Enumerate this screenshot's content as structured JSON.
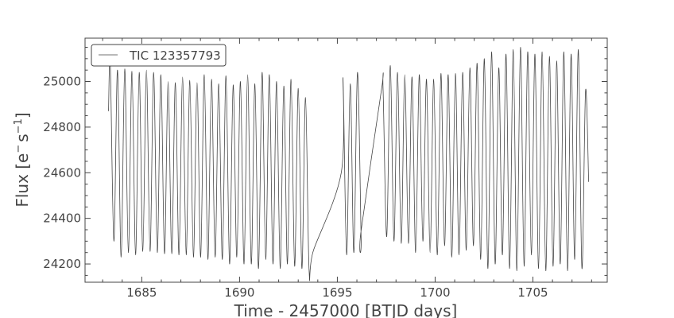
{
  "chart_data": {
    "type": "line",
    "xlabel": "Time - 2457000 [BTJD days]",
    "ylabel_base": "Flux [e",
    "ylabel_sup1": "−",
    "ylabel_mid": "s",
    "ylabel_sup2": "−1",
    "ylabel_end": "]",
    "xlim": [
      1682.1,
      1708.8
    ],
    "ylim": [
      24120,
      25190
    ],
    "grid": false,
    "legend_position": "top-left",
    "series": [
      {
        "name": "TIC 123357793",
        "color": "#444444",
        "segments": [
          {
            "t_start": 1683.3,
            "t_end": 1693.78,
            "y_start": 24870,
            "y_end": 24260,
            "period": 0.3697,
            "peaks": [
              25080,
              25050,
              25055,
              25045,
              25040,
              25050,
              25040,
              25030,
              25000,
              24995,
              25020,
              25005,
              24995,
              25030,
              25010,
              24990,
              25025,
              24985,
              25000,
              25030,
              24990,
              25040,
              25030,
              25000,
              24980,
              25010,
              24970,
              24930
            ],
            "troughs": [
              24300,
              24230,
              24250,
              24240,
              24255,
              24255,
              24250,
              24245,
              24245,
              24240,
              24240,
              24230,
              24230,
              24220,
              24230,
              24220,
              24200,
              24230,
              24200,
              24200,
              24180,
              24220,
              24200,
              24180,
              24200,
              24190,
              24180,
              24170
            ]
          },
          {
            "t_start": 1695.2,
            "t_end": 1696.22,
            "y_start": 24600,
            "y_end": 24350,
            "period": 0.3697,
            "peaks": [
              25010,
              24990,
              25040
            ],
            "troughs": [
              24240,
              24250,
              24320
            ]
          },
          {
            "t_start": 1697.25,
            "t_end": 1707.85,
            "y_start": 24960,
            "y_end": 24560,
            "period": 0.3697,
            "peaks": [
              24960,
              25070,
              25040,
              25030,
              25020,
              25030,
              25010,
              25010,
              25035,
              25030,
              25035,
              25040,
              25060,
              25080,
              25100,
              25130,
              25060,
              25120,
              25140,
              25150,
              25130,
              25120,
              25130,
              25110,
              25090,
              25130,
              25120,
              25140,
              24960
            ],
            "troughs": [
              24320,
              24300,
              24290,
              24290,
              24250,
              24300,
              24250,
              24240,
              24280,
              24230,
              24240,
              24260,
              24280,
              24220,
              24180,
              24200,
              24240,
              24180,
              24170,
              24190,
              24240,
              24180,
              24170,
              24190,
              24200,
              24170,
              24220,
              24180,
              24300
            ]
          }
        ]
      }
    ]
  }
}
